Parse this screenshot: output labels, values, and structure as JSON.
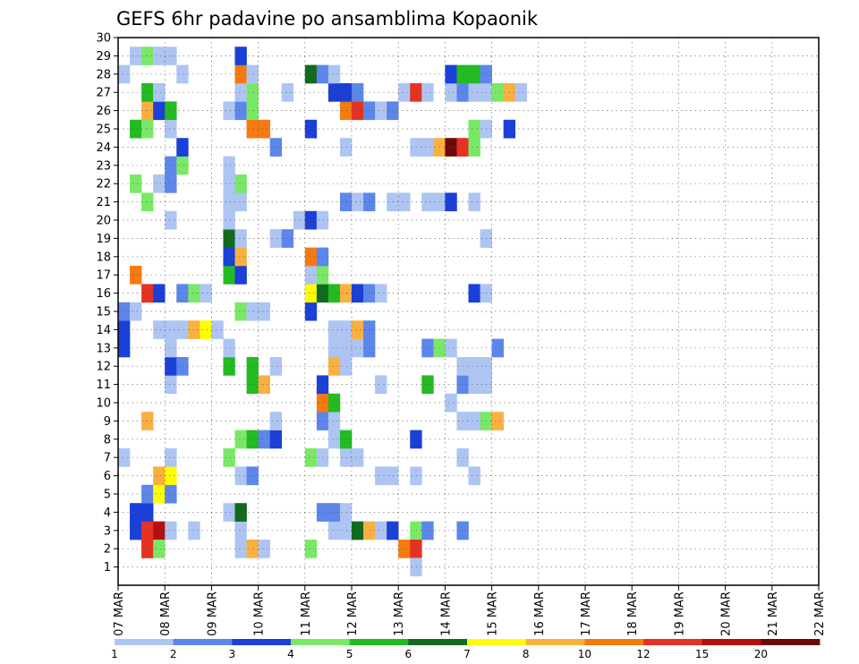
{
  "chart_data": {
    "type": "heatmap",
    "title": "GEFS 6hr padavine po ansamblima Kopaonik",
    "xlabel": "",
    "ylabel": "",
    "x_tick_labels": [
      "07 MAR",
      "08 MAR",
      "09 MAR",
      "10 MAR",
      "11 MAR",
      "12 MAR",
      "13 MAR",
      "14 MAR",
      "15 MAR",
      "16 MAR",
      "17 MAR",
      "18 MAR",
      "19 MAR",
      "20 MAR",
      "21 MAR",
      "22 MAR"
    ],
    "y_tick_labels": [
      "1",
      "2",
      "3",
      "4",
      "5",
      "6",
      "7",
      "8",
      "9",
      "10",
      "11",
      "12",
      "13",
      "14",
      "15",
      "16",
      "17",
      "18",
      "19",
      "20",
      "21",
      "22",
      "23",
      "24",
      "25",
      "26",
      "27",
      "28",
      "29",
      "30"
    ],
    "ylim": [
      0,
      30
    ],
    "time_steps_per_day": 4,
    "grid": true,
    "colorbar": {
      "labels": [
        "1",
        "2",
        "3",
        "4",
        "5",
        "6",
        "7",
        "8",
        "10",
        "12",
        "15",
        "20"
      ],
      "colors": [
        "#aec5f3",
        "#5c86ea",
        "#1a40d8",
        "#7ae866",
        "#22bb22",
        "#116a1d",
        "#fefe00",
        "#f8b040",
        "#f57a10",
        "#e53222",
        "#b60f0f",
        "#6a0b0b"
      ]
    },
    "values": [
      [
        3,
        1,
        "#1a40d8"
      ],
      [
        3,
        2,
        "#e53222"
      ],
      [
        3,
        3,
        "#b60f0f"
      ],
      [
        3,
        4,
        "#aec5f3"
      ],
      [
        3,
        6,
        "#aec5f3"
      ],
      [
        3,
        10,
        "#aec5f3"
      ],
      [
        3,
        18,
        "#aec5f3"
      ],
      [
        3,
        19,
        "#aec5f3"
      ],
      [
        3,
        20,
        "#116a1d"
      ],
      [
        3,
        21,
        "#f8b040"
      ],
      [
        3,
        22,
        "#aec5f3"
      ],
      [
        3,
        23,
        "#1a40d8"
      ],
      [
        3,
        25,
        "#7ae866"
      ],
      [
        3,
        26,
        "#5c86ea"
      ],
      [
        3,
        29,
        "#5c86ea"
      ],
      [
        2,
        2,
        "#f57a10"
      ],
      [
        2,
        2,
        "#e53222"
      ],
      [
        2,
        3,
        "#7ae866"
      ],
      [
        2,
        10,
        "#aec5f3"
      ],
      [
        2,
        11,
        "#f8b040"
      ],
      [
        2,
        12,
        "#aec5f3"
      ],
      [
        2,
        16,
        "#7ae866"
      ],
      [
        2,
        24,
        "#f57a10"
      ],
      [
        2,
        25,
        "#e53222"
      ],
      [
        1,
        25,
        "#aec5f3"
      ],
      [
        4,
        1,
        "#1a40d8"
      ],
      [
        4,
        2,
        "#1a40d8"
      ],
      [
        4,
        9,
        "#aec5f3"
      ],
      [
        4,
        10,
        "#116a1d"
      ],
      [
        4,
        17,
        "#5c86ea"
      ],
      [
        4,
        18,
        "#5c86ea"
      ],
      [
        4,
        19,
        "#aec5f3"
      ],
      [
        5,
        2,
        "#5c86ea"
      ],
      [
        5,
        3,
        "#fefe00"
      ],
      [
        5,
        4,
        "#5c86ea"
      ],
      [
        6,
        3,
        "#f8b040"
      ],
      [
        6,
        4,
        "#fefe00"
      ],
      [
        6,
        10,
        "#aec5f3"
      ],
      [
        6,
        11,
        "#5c86ea"
      ],
      [
        6,
        22,
        "#aec5f3"
      ],
      [
        6,
        23,
        "#aec5f3"
      ],
      [
        6,
        25,
        "#aec5f3"
      ],
      [
        6,
        30,
        "#aec5f3"
      ],
      [
        7,
        0,
        "#aec5f3"
      ],
      [
        7,
        4,
        "#aec5f3"
      ],
      [
        7,
        9,
        "#7ae866"
      ],
      [
        7,
        16,
        "#7ae866"
      ],
      [
        7,
        17,
        "#aec5f3"
      ],
      [
        7,
        19,
        "#aec5f3"
      ],
      [
        7,
        20,
        "#aec5f3"
      ],
      [
        7,
        29,
        "#aec5f3"
      ],
      [
        8,
        10,
        "#7ae866"
      ],
      [
        8,
        11,
        "#22bb22"
      ],
      [
        8,
        12,
        "#5c86ea"
      ],
      [
        8,
        13,
        "#1a40d8"
      ],
      [
        8,
        18,
        "#aec5f3"
      ],
      [
        8,
        19,
        "#22bb22"
      ],
      [
        8,
        25,
        "#1a40d8"
      ],
      [
        9,
        2,
        "#f8b040"
      ],
      [
        9,
        13,
        "#aec5f3"
      ],
      [
        9,
        17,
        "#5c86ea"
      ],
      [
        9,
        18,
        "#aec5f3"
      ],
      [
        9,
        29,
        "#aec5f3"
      ],
      [
        9,
        30,
        "#aec5f3"
      ],
      [
        9,
        31,
        "#7ae866"
      ],
      [
        9,
        32,
        "#f8b040"
      ],
      [
        10,
        17,
        "#f57a10"
      ],
      [
        10,
        18,
        "#22bb22"
      ],
      [
        10,
        28,
        "#aec5f3"
      ],
      [
        11,
        4,
        "#aec5f3"
      ],
      [
        11,
        11,
        "#22bb22"
      ],
      [
        11,
        12,
        "#f8b040"
      ],
      [
        11,
        17,
        "#1a40d8"
      ],
      [
        11,
        22,
        "#aec5f3"
      ],
      [
        11,
        26,
        "#22bb22"
      ],
      [
        11,
        29,
        "#5c86ea"
      ],
      [
        11,
        30,
        "#aec5f3"
      ],
      [
        11,
        31,
        "#aec5f3"
      ],
      [
        12,
        4,
        "#1a40d8"
      ],
      [
        12,
        5,
        "#5c86ea"
      ],
      [
        12,
        9,
        "#22bb22"
      ],
      [
        12,
        11,
        "#22bb22"
      ],
      [
        12,
        13,
        "#aec5f3"
      ],
      [
        12,
        18,
        "#f8b040"
      ],
      [
        12,
        19,
        "#aec5f3"
      ],
      [
        12,
        29,
        "#aec5f3"
      ],
      [
        12,
        30,
        "#aec5f3"
      ],
      [
        12,
        31,
        "#aec5f3"
      ],
      [
        13,
        0,
        "#1a40d8"
      ],
      [
        13,
        4,
        "#aec5f3"
      ],
      [
        13,
        9,
        "#aec5f3"
      ],
      [
        13,
        18,
        "#aec5f3"
      ],
      [
        13,
        19,
        "#aec5f3"
      ],
      [
        13,
        20,
        "#aec5f3"
      ],
      [
        13,
        21,
        "#5c86ea"
      ],
      [
        13,
        26,
        "#5c86ea"
      ],
      [
        13,
        27,
        "#7ae866"
      ],
      [
        13,
        28,
        "#aec5f3"
      ],
      [
        13,
        32,
        "#5c86ea"
      ],
      [
        14,
        0,
        "#1a40d8"
      ],
      [
        14,
        18,
        "#aec5f3"
      ],
      [
        14,
        19,
        "#aec5f3"
      ],
      [
        14,
        20,
        "#f8b040"
      ],
      [
        14,
        21,
        "#5c86ea"
      ],
      [
        14,
        3,
        "#aec5f3"
      ],
      [
        14,
        4,
        "#aec5f3"
      ],
      [
        14,
        5,
        "#aec5f3"
      ],
      [
        14,
        6,
        "#f8b040"
      ],
      [
        14,
        7,
        "#fefe00"
      ],
      [
        14,
        8,
        "#aec5f3"
      ],
      [
        15,
        0,
        "#5c86ea"
      ],
      [
        15,
        1,
        "#aec5f3"
      ],
      [
        15,
        10,
        "#7ae866"
      ],
      [
        15,
        11,
        "#aec5f3"
      ],
      [
        15,
        12,
        "#aec5f3"
      ],
      [
        15,
        16,
        "#1a40d8"
      ],
      [
        16,
        2,
        "#e53222"
      ],
      [
        16,
        3,
        "#1a40d8"
      ],
      [
        16,
        5,
        "#5c86ea"
      ],
      [
        16,
        6,
        "#7ae866"
      ],
      [
        16,
        7,
        "#aec5f3"
      ],
      [
        16,
        16,
        "#fefe00"
      ],
      [
        16,
        17,
        "#116a1d"
      ],
      [
        16,
        18,
        "#22bb22"
      ],
      [
        16,
        19,
        "#f8b040"
      ],
      [
        16,
        20,
        "#1a40d8"
      ],
      [
        16,
        21,
        "#5c86ea"
      ],
      [
        16,
        22,
        "#aec5f3"
      ],
      [
        16,
        30,
        "#1a40d8"
      ],
      [
        16,
        31,
        "#aec5f3"
      ],
      [
        17,
        1,
        "#f57a10"
      ],
      [
        17,
        9,
        "#22bb22"
      ],
      [
        17,
        10,
        "#1a40d8"
      ],
      [
        17,
        16,
        "#aec5f3"
      ],
      [
        17,
        17,
        "#7ae866"
      ],
      [
        18,
        9,
        "#1a40d8"
      ],
      [
        18,
        10,
        "#f8b040"
      ],
      [
        18,
        16,
        "#f57a10"
      ],
      [
        18,
        17,
        "#5c86ea"
      ],
      [
        19,
        9,
        "#116a1d"
      ],
      [
        19,
        10,
        "#aec5f3"
      ],
      [
        19,
        13,
        "#aec5f3"
      ],
      [
        19,
        14,
        "#5c86ea"
      ],
      [
        19,
        31,
        "#aec5f3"
      ],
      [
        20,
        9,
        "#aec5f3"
      ],
      [
        20,
        15,
        "#aec5f3"
      ],
      [
        20,
        16,
        "#1a40d8"
      ],
      [
        20,
        17,
        "#aec5f3"
      ],
      [
        20,
        4,
        "#aec5f3"
      ],
      [
        21,
        2,
        "#7ae866"
      ],
      [
        21,
        9,
        "#aec5f3"
      ],
      [
        21,
        10,
        "#aec5f3"
      ],
      [
        21,
        19,
        "#5c86ea"
      ],
      [
        21,
        20,
        "#aec5f3"
      ],
      [
        21,
        21,
        "#5c86ea"
      ],
      [
        21,
        23,
        "#aec5f3"
      ],
      [
        21,
        24,
        "#aec5f3"
      ],
      [
        21,
        26,
        "#aec5f3"
      ],
      [
        21,
        27,
        "#aec5f3"
      ],
      [
        21,
        28,
        "#1a40d8"
      ],
      [
        21,
        30,
        "#aec5f3"
      ],
      [
        22,
        1,
        "#7ae866"
      ],
      [
        22,
        3,
        "#aec5f3"
      ],
      [
        22,
        4,
        "#5c86ea"
      ],
      [
        22,
        9,
        "#aec5f3"
      ],
      [
        22,
        10,
        "#7ae866"
      ],
      [
        23,
        4,
        "#5c86ea"
      ],
      [
        23,
        5,
        "#7ae866"
      ],
      [
        23,
        9,
        "#aec5f3"
      ],
      [
        24,
        5,
        "#1a40d8"
      ],
      [
        24,
        13,
        "#5c86ea"
      ],
      [
        24,
        19,
        "#aec5f3"
      ],
      [
        24,
        25,
        "#aec5f3"
      ],
      [
        24,
        26,
        "#aec5f3"
      ],
      [
        24,
        27,
        "#f8b040"
      ],
      [
        24,
        28,
        "#6a0b0b"
      ],
      [
        24,
        29,
        "#e53222"
      ],
      [
        24,
        30,
        "#7ae866"
      ],
      [
        25,
        1,
        "#22bb22"
      ],
      [
        25,
        2,
        "#7ae866"
      ],
      [
        25,
        4,
        "#aec5f3"
      ],
      [
        25,
        11,
        "#f57a10"
      ],
      [
        25,
        12,
        "#f57a10"
      ],
      [
        25,
        16,
        "#1a40d8"
      ],
      [
        25,
        30,
        "#7ae866"
      ],
      [
        25,
        31,
        "#aec5f3"
      ],
      [
        25,
        33,
        "#1a40d8"
      ],
      [
        26,
        2,
        "#f8b040"
      ],
      [
        26,
        3,
        "#1a40d8"
      ],
      [
        26,
        4,
        "#22bb22"
      ],
      [
        26,
        9,
        "#aec5f3"
      ],
      [
        26,
        10,
        "#5c86ea"
      ],
      [
        26,
        11,
        "#7ae866"
      ],
      [
        26,
        19,
        "#f57a10"
      ],
      [
        26,
        20,
        "#e53222"
      ],
      [
        26,
        21,
        "#5c86ea"
      ],
      [
        26,
        22,
        "#aec5f3"
      ],
      [
        26,
        23,
        "#5c86ea"
      ],
      [
        27,
        2,
        "#22bb22"
      ],
      [
        27,
        3,
        "#aec5f3"
      ],
      [
        27,
        10,
        "#aec5f3"
      ],
      [
        27,
        11,
        "#7ae866"
      ],
      [
        27,
        14,
        "#aec5f3"
      ],
      [
        27,
        18,
        "#1a40d8"
      ],
      [
        27,
        19,
        "#1a40d8"
      ],
      [
        27,
        20,
        "#5c86ea"
      ],
      [
        27,
        24,
        "#aec5f3"
      ],
      [
        27,
        25,
        "#e53222"
      ],
      [
        27,
        26,
        "#aec5f3"
      ],
      [
        27,
        28,
        "#aec5f3"
      ],
      [
        27,
        29,
        "#5c86ea"
      ],
      [
        27,
        30,
        "#aec5f3"
      ],
      [
        27,
        31,
        "#aec5f3"
      ],
      [
        27,
        32,
        "#7ae866"
      ],
      [
        27,
        33,
        "#f8b040"
      ],
      [
        27,
        34,
        "#aec5f3"
      ],
      [
        28,
        0,
        "#aec5f3"
      ],
      [
        28,
        5,
        "#aec5f3"
      ],
      [
        28,
        10,
        "#f57a10"
      ],
      [
        28,
        11,
        "#aec5f3"
      ],
      [
        28,
        16,
        "#116a1d"
      ],
      [
        28,
        17,
        "#5c86ea"
      ],
      [
        28,
        18,
        "#aec5f3"
      ],
      [
        28,
        28,
        "#1a40d8"
      ],
      [
        28,
        29,
        "#22bb22"
      ],
      [
        28,
        30,
        "#22bb22"
      ],
      [
        28,
        31,
        "#5c86ea"
      ],
      [
        29,
        1,
        "#aec5f3"
      ],
      [
        29,
        2,
        "#7ae866"
      ],
      [
        29,
        3,
        "#aec5f3"
      ],
      [
        29,
        4,
        "#aec5f3"
      ],
      [
        29,
        10,
        "#1a40d8"
      ]
    ]
  }
}
